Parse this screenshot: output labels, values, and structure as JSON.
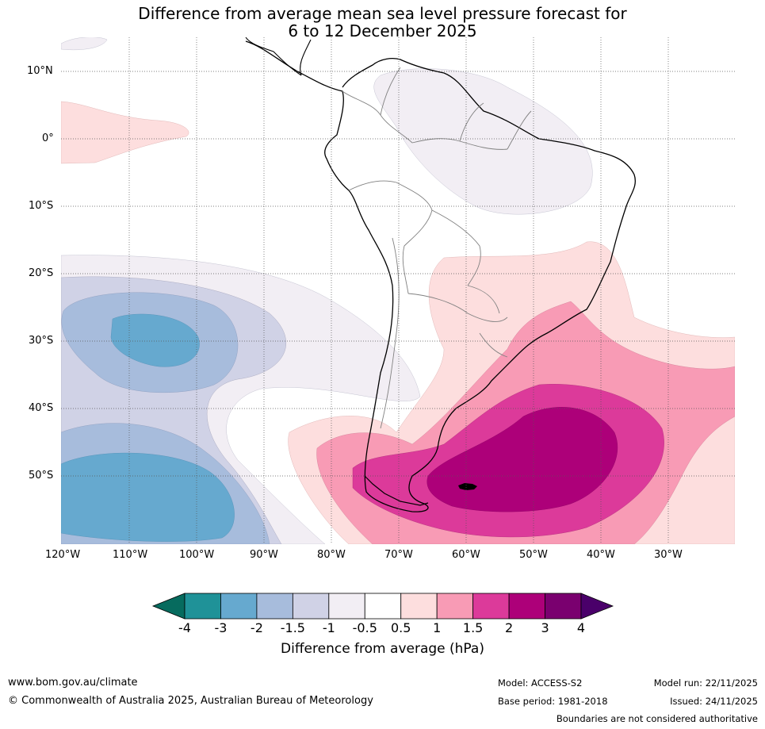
{
  "title_line1": "Difference from average mean sea level pressure forecast for",
  "title_line2": "6 to 12 December 2025",
  "map": {
    "lat_labels": [
      "10°N",
      "0°",
      "10°S",
      "20°S",
      "30°S",
      "40°S",
      "50°S"
    ],
    "lon_labels": [
      "120°W",
      "110°W",
      "100°W",
      "90°W",
      "80°W",
      "70°W",
      "60°W",
      "50°W",
      "40°W",
      "30°W"
    ],
    "anomaly_regions": [
      {
        "name": "high-anomaly-south-atlantic-core",
        "level": "2 to 3 hPa"
      },
      {
        "name": "high-anomaly-south-atlantic",
        "level": "1.5 to 2 hPa"
      },
      {
        "name": "low-anomaly-southeast-pacific-north",
        "level": "-3 to -2 hPa"
      },
      {
        "name": "low-anomaly-southeast-pacific-south",
        "level": "-3 to -2 hPa"
      }
    ]
  },
  "colorbar": {
    "title": "Difference from average (hPa)",
    "tick_labels": [
      "-4",
      "-3",
      "-2",
      "-1.5",
      "-1",
      "-0.5",
      "0.5",
      "1",
      "1.5",
      "2",
      "3",
      "4"
    ],
    "colors": [
      "#1f9298",
      "#66a9cf",
      "#a7bcdc",
      "#d0d2e6",
      "#f2eef4",
      "#ffffff",
      "#fddede",
      "#f89bb5",
      "#dc3a9a",
      "#ad0079",
      "#7a006f"
    ],
    "under_color": "#066b5e",
    "over_color": "#4a006a"
  },
  "footer": {
    "website": "www.bom.gov.au/climate",
    "copyright": "© Commonwealth of Australia 2025, Australian Bureau of Meteorology",
    "model": "Model: ACCESS-S2",
    "base_period": "Base period: 1981-2018",
    "model_run": "Model run: 22/11/2025",
    "issued": "Issued: 24/11/2025",
    "boundaries_note": "Boundaries are not considered authoritative"
  }
}
